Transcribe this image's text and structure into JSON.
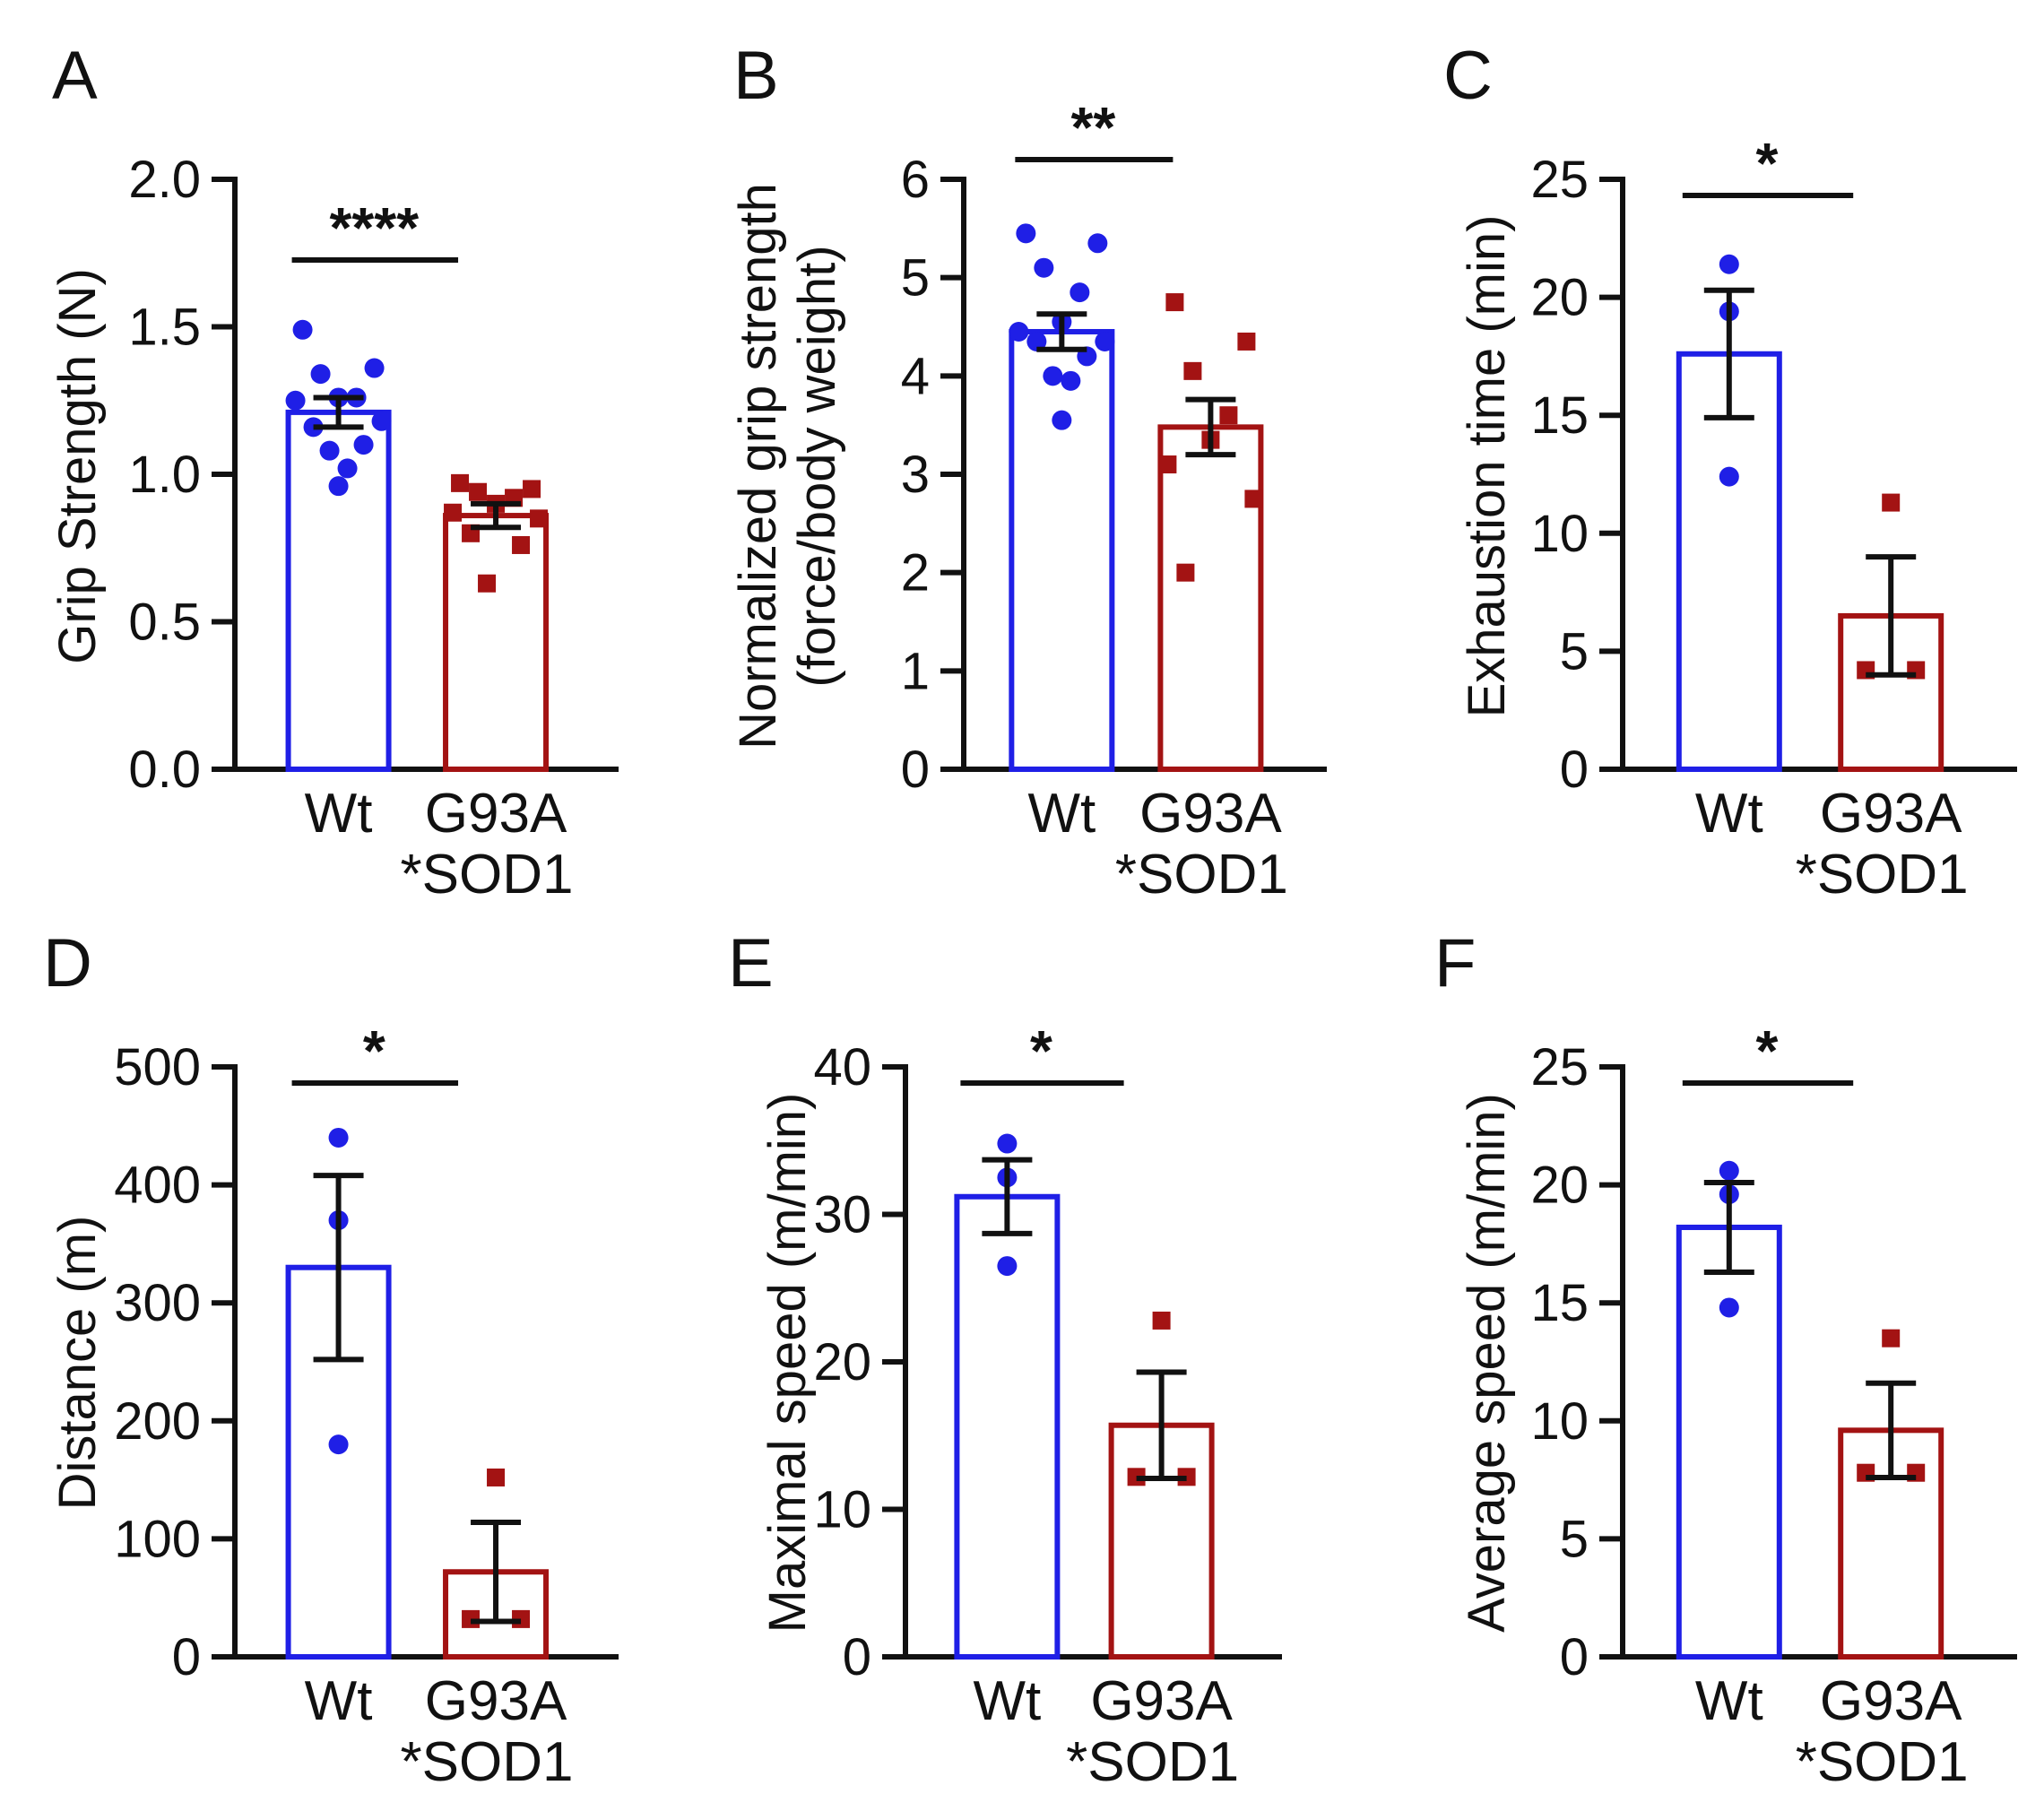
{
  "figure": {
    "description_colors": {
      "wt": "#1f1fe6",
      "mutant": "#a31313",
      "axis": "#111111"
    }
  },
  "chart_data": [
    {
      "panel": "A",
      "type": "bar",
      "ylabel_lines": [
        "Grip  Strength (N)"
      ],
      "ylim": [
        0,
        2.0
      ],
      "ticks": [
        {
          "v": 0,
          "t": "0.0"
        },
        {
          "v": 0.5,
          "t": "0.5"
        },
        {
          "v": 1.0,
          "t": "1.0"
        },
        {
          "v": 1.5,
          "t": "1.5"
        },
        {
          "v": 2.0,
          "t": "2.0"
        }
      ],
      "categories": [
        {
          "line1": "Wt",
          "line2": ""
        },
        {
          "line1": "G93A",
          "line2": "*SOD1"
        }
      ],
      "groups": [
        {
          "name": "Wt",
          "mean": 1.21,
          "sem": 0.05,
          "points": [
            1.49,
            1.36,
            1.34,
            1.26,
            1.26,
            1.25,
            1.18,
            1.16,
            1.1,
            1.08,
            1.02,
            0.96
          ]
        },
        {
          "name": "G93A *SOD1",
          "mean": 0.86,
          "sem": 0.04,
          "points": [
            0.97,
            0.95,
            0.94,
            0.92,
            0.9,
            0.87,
            0.85,
            0.8,
            0.76,
            0.63
          ]
        }
      ],
      "significance": "****"
    },
    {
      "panel": "B",
      "type": "bar",
      "ylabel_lines": [
        "Normalized grip strength",
        "(force/body weight)"
      ],
      "ylim": [
        0,
        6
      ],
      "ticks": [
        {
          "v": 0,
          "t": "0"
        },
        {
          "v": 1,
          "t": "1"
        },
        {
          "v": 2,
          "t": "2"
        },
        {
          "v": 3,
          "t": "3"
        },
        {
          "v": 4,
          "t": "4"
        },
        {
          "v": 5,
          "t": "5"
        },
        {
          "v": 6,
          "t": "6"
        }
      ],
      "categories": [
        {
          "line1": "Wt",
          "line2": ""
        },
        {
          "line1": "G93A",
          "line2": "*SOD1"
        }
      ],
      "groups": [
        {
          "name": "Wt",
          "mean": 4.45,
          "sem": 0.18,
          "points": [
            5.45,
            5.35,
            5.1,
            4.85,
            4.55,
            4.45,
            4.35,
            4.35,
            4.2,
            4.0,
            3.95,
            3.55
          ]
        },
        {
          "name": "G93A *SOD1",
          "mean": 3.48,
          "sem": 0.28,
          "points": [
            4.75,
            4.35,
            4.05,
            3.6,
            3.35,
            3.1,
            2.75,
            2.0
          ]
        }
      ],
      "significance": "**"
    },
    {
      "panel": "C",
      "type": "bar",
      "ylabel_lines": [
        "Exhaustion time (min)"
      ],
      "ylim": [
        0,
        25
      ],
      "ticks": [
        {
          "v": 0,
          "t": "0"
        },
        {
          "v": 5,
          "t": "5"
        },
        {
          "v": 10,
          "t": "10"
        },
        {
          "v": 15,
          "t": "15"
        },
        {
          "v": 20,
          "t": "20"
        },
        {
          "v": 25,
          "t": "25"
        }
      ],
      "categories": [
        {
          "line1": "Wt",
          "line2": ""
        },
        {
          "line1": "G93A",
          "line2": "*SOD1"
        }
      ],
      "groups": [
        {
          "name": "Wt",
          "mean": 17.6,
          "sem": 2.7,
          "points": [
            21.4,
            19.4,
            12.4
          ]
        },
        {
          "name": "G93A *SOD1",
          "mean": 6.5,
          "sem": 2.5,
          "points": [
            11.3,
            4.2,
            4.2
          ]
        }
      ],
      "significance": "*"
    },
    {
      "panel": "D",
      "type": "bar",
      "ylabel_lines": [
        "Distance (m)"
      ],
      "ylim": [
        0,
        500
      ],
      "ticks": [
        {
          "v": 0,
          "t": "0"
        },
        {
          "v": 100,
          "t": "100"
        },
        {
          "v": 200,
          "t": "200"
        },
        {
          "v": 300,
          "t": "300"
        },
        {
          "v": 400,
          "t": "400"
        },
        {
          "v": 500,
          "t": "500"
        }
      ],
      "categories": [
        {
          "line1": "Wt",
          "line2": ""
        },
        {
          "line1": "G93A",
          "line2": "*SOD1"
        }
      ],
      "groups": [
        {
          "name": "Wt",
          "mean": 330,
          "sem": 78,
          "points": [
            440,
            370,
            180
          ]
        },
        {
          "name": "G93A *SOD1",
          "mean": 72,
          "sem": 42,
          "points": [
            152,
            32,
            32
          ]
        }
      ],
      "significance": "*"
    },
    {
      "panel": "E",
      "type": "bar",
      "ylabel_lines": [
        "Maximal speed (m/min)"
      ],
      "ylim": [
        0,
        40
      ],
      "ticks": [
        {
          "v": 0,
          "t": "0"
        },
        {
          "v": 10,
          "t": "10"
        },
        {
          "v": 20,
          "t": "20"
        },
        {
          "v": 30,
          "t": "30"
        },
        {
          "v": 40,
          "t": "40"
        }
      ],
      "categories": [
        {
          "line1": "Wt",
          "line2": ""
        },
        {
          "line1": "G93A",
          "line2": "*SOD1"
        }
      ],
      "groups": [
        {
          "name": "Wt",
          "mean": 31.2,
          "sem": 2.5,
          "points": [
            34.8,
            32.5,
            26.5
          ]
        },
        {
          "name": "G93A *SOD1",
          "mean": 15.7,
          "sem": 3.6,
          "points": [
            22.8,
            12.2,
            12.2
          ]
        }
      ],
      "significance": "*"
    },
    {
      "panel": "F",
      "type": "bar",
      "ylabel_lines": [
        "Average speed (m/min)"
      ],
      "ylim": [
        0,
        25
      ],
      "ticks": [
        {
          "v": 0,
          "t": "0"
        },
        {
          "v": 5,
          "t": "5"
        },
        {
          "v": 10,
          "t": "10"
        },
        {
          "v": 15,
          "t": "15"
        },
        {
          "v": 20,
          "t": "20"
        },
        {
          "v": 25,
          "t": "25"
        }
      ],
      "categories": [
        {
          "line1": "Wt",
          "line2": ""
        },
        {
          "line1": "G93A",
          "line2": "*SOD1"
        }
      ],
      "groups": [
        {
          "name": "Wt",
          "mean": 18.2,
          "sem": 1.9,
          "points": [
            20.6,
            19.6,
            14.8
          ]
        },
        {
          "name": "G93A *SOD1",
          "mean": 9.6,
          "sem": 2.0,
          "points": [
            13.5,
            7.8,
            7.8
          ]
        }
      ],
      "significance": "*"
    }
  ]
}
